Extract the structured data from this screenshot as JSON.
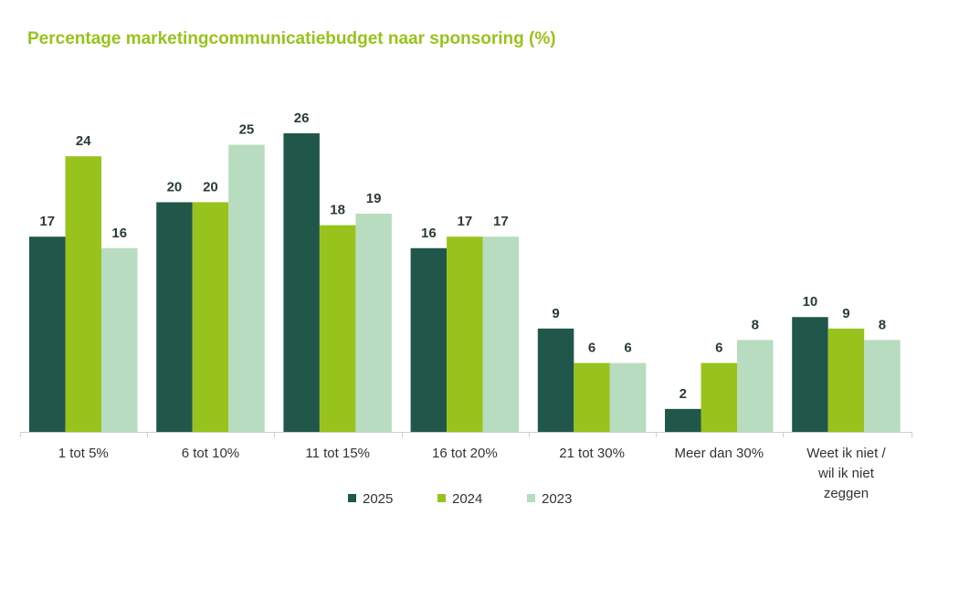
{
  "chart_data": {
    "type": "bar",
    "title": "Percentage marketingcommunicatiebudget naar sponsoring (%)",
    "categories": [
      "1 tot 5%",
      "6 tot 10%",
      "11 tot 15%",
      "16 tot 20%",
      "21 tot 30%",
      "Meer dan 30%",
      "Weet ik niet / wil ik niet zeggen"
    ],
    "series": [
      {
        "name": "2025",
        "color": "#21574a",
        "values": [
          17,
          20,
          26,
          16,
          9,
          2,
          10
        ]
      },
      {
        "name": "2024",
        "color": "#97c31c",
        "values": [
          24,
          20,
          18,
          17,
          6,
          6,
          9
        ]
      },
      {
        "name": "2023",
        "color": "#b7dcbf",
        "values": [
          16,
          25,
          19,
          17,
          6,
          8,
          8
        ]
      }
    ],
    "ylim": [
      0,
      26
    ],
    "grid": false,
    "legend_position": "bottom",
    "data_labels": true
  }
}
